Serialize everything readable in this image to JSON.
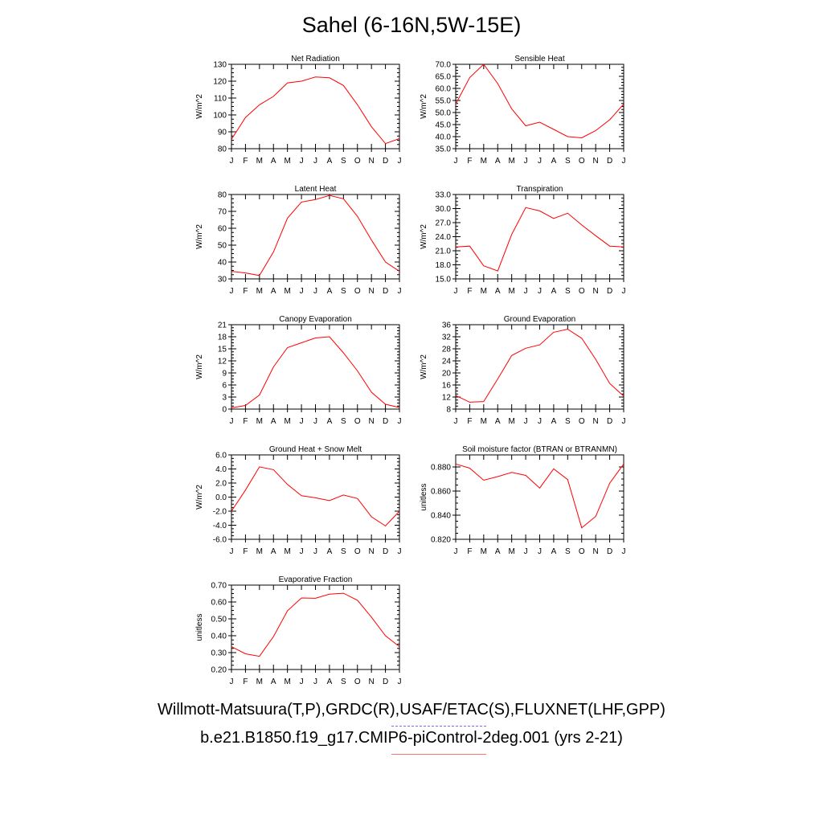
{
  "page": {
    "title": "Sahel (6-16N,5W-15E)",
    "footer_obs": "Willmott-Matsuura(T,P),GRDC(R),USAF/ETAC(S),FLUXNET(LHF,GPP)",
    "footer_model": "b.e21.B1850.f19_g17.CMIP6-piControl-2deg.001 (yrs 2-21)",
    "colors": {
      "model_line": "#ff0000",
      "obs_line": "#6f6fff",
      "axis": "#000000"
    }
  },
  "chart_data": [
    {
      "type": "line",
      "title": "Net Radiation",
      "xlabel": "",
      "ylabel": "W/m^2",
      "x": [
        "J",
        "F",
        "M",
        "A",
        "M",
        "J",
        "J",
        "A",
        "S",
        "O",
        "N",
        "D",
        "J"
      ],
      "ylim": [
        80,
        130
      ],
      "yticks": [
        "80",
        "90",
        "100",
        "110",
        "120",
        "130"
      ],
      "series": [
        {
          "values": [
            85.5,
            98.5,
            106,
            111,
            119,
            120,
            122.5,
            122,
            117.5,
            106,
            93,
            83,
            86
          ]
        }
      ],
      "grid": false
    },
    {
      "type": "line",
      "title": "Sensible Heat",
      "xlabel": "",
      "ylabel": "W/m^2",
      "x": [
        "J",
        "F",
        "M",
        "A",
        "M",
        "J",
        "J",
        "A",
        "S",
        "O",
        "N",
        "D",
        "J"
      ],
      "ylim": [
        35,
        70
      ],
      "yticks": [
        "35.0",
        "40.0",
        "45.0",
        "50.0",
        "55.0",
        "60.0",
        "65.0",
        "70.0"
      ],
      "series": [
        {
          "values": [
            53.5,
            64.5,
            70,
            62,
            51.5,
            44.5,
            46,
            43,
            40,
            39.5,
            42.5,
            47,
            53.5
          ]
        }
      ],
      "grid": false
    },
    {
      "type": "line",
      "title": "Latent Heat",
      "xlabel": "",
      "ylabel": "W/m^2",
      "x": [
        "J",
        "F",
        "M",
        "A",
        "M",
        "J",
        "J",
        "A",
        "S",
        "O",
        "N",
        "D",
        "J"
      ],
      "ylim": [
        30,
        80
      ],
      "yticks": [
        "30",
        "40",
        "50",
        "60",
        "70",
        "80"
      ],
      "series": [
        {
          "values": [
            34.5,
            33.5,
            32,
            46,
            66,
            75.5,
            77,
            79.5,
            77.5,
            67,
            53,
            40,
            34.5
          ]
        }
      ],
      "grid": false
    },
    {
      "type": "line",
      "title": "Transpiration",
      "xlabel": "",
      "ylabel": "W/m^2",
      "x": [
        "J",
        "F",
        "M",
        "A",
        "M",
        "J",
        "J",
        "A",
        "S",
        "O",
        "N",
        "D",
        "J"
      ],
      "ylim": [
        15,
        33
      ],
      "yticks": [
        "15.0",
        "18.0",
        "21.0",
        "24.0",
        "27.0",
        "30.0",
        "33.0"
      ],
      "series": [
        {
          "values": [
            21.8,
            22,
            17.8,
            16.7,
            24.5,
            30.2,
            29.5,
            27.9,
            29,
            26.5,
            24.2,
            22,
            21.8
          ]
        }
      ],
      "grid": false
    },
    {
      "type": "line",
      "title": "Canopy Evaporation",
      "xlabel": "",
      "ylabel": "W/m^2",
      "x": [
        "J",
        "F",
        "M",
        "A",
        "M",
        "J",
        "J",
        "A",
        "S",
        "O",
        "N",
        "D",
        "J"
      ],
      "ylim": [
        0,
        21
      ],
      "yticks": [
        "0",
        "3",
        "6",
        "9",
        "12",
        "15",
        "18",
        "21"
      ],
      "series": [
        {
          "values": [
            0.3,
            0.9,
            3.5,
            10.5,
            15.3,
            16.5,
            17.7,
            18,
            14,
            9.5,
            4.2,
            1.2,
            0.4
          ]
        }
      ],
      "grid": false
    },
    {
      "type": "line",
      "title": "Ground Evaporation",
      "xlabel": "",
      "ylabel": "W/m^2",
      "x": [
        "J",
        "F",
        "M",
        "A",
        "M",
        "J",
        "J",
        "A",
        "S",
        "O",
        "N",
        "D",
        "J"
      ],
      "ylim": [
        8,
        36
      ],
      "yticks": [
        "8",
        "12",
        "16",
        "20",
        "24",
        "28",
        "32",
        "36"
      ],
      "series": [
        {
          "values": [
            12.5,
            10.3,
            10.5,
            18,
            25.8,
            28.2,
            29.3,
            33.5,
            34.5,
            31.5,
            24.5,
            16.5,
            12.3
          ]
        }
      ],
      "grid": false
    },
    {
      "type": "line",
      "title": "Ground Heat + Snow Melt",
      "xlabel": "",
      "ylabel": "W/m^2",
      "x": [
        "J",
        "F",
        "M",
        "A",
        "M",
        "J",
        "J",
        "A",
        "S",
        "O",
        "N",
        "D",
        "J"
      ],
      "ylim": [
        -6,
        6
      ],
      "yticks": [
        "-6.0",
        "-4.0",
        "-2.0",
        "0.0",
        "2.0",
        "4.0",
        "6.0"
      ],
      "series": [
        {
          "values": [
            -2,
            1,
            4.3,
            3.9,
            1.8,
            0.2,
            -0.1,
            -0.5,
            0.3,
            -0.2,
            -2.8,
            -4.1,
            -2
          ]
        }
      ],
      "grid": false
    },
    {
      "type": "line",
      "title": "Soil moisture factor (BTRAN or BTRANMN)",
      "xlabel": "",
      "ylabel": "unitless",
      "x": [
        "J",
        "F",
        "M",
        "A",
        "M",
        "J",
        "J",
        "A",
        "S",
        "O",
        "N",
        "D",
        "J"
      ],
      "ylim": [
        0.82,
        0.89
      ],
      "yticks": [
        "0.820",
        "0.840",
        "0.860",
        "0.880"
      ],
      "series": [
        {
          "values": [
            0.8825,
            0.879,
            0.869,
            0.872,
            0.8755,
            0.873,
            0.8625,
            0.8785,
            0.8695,
            0.8295,
            0.839,
            0.8665,
            0.8825
          ]
        }
      ],
      "grid": false
    },
    {
      "type": "line",
      "title": "Evaporative Fraction",
      "xlabel": "",
      "ylabel": "unitless",
      "x": [
        "J",
        "F",
        "M",
        "A",
        "M",
        "J",
        "J",
        "A",
        "S",
        "O",
        "N",
        "D",
        "J"
      ],
      "ylim": [
        0.2,
        0.7
      ],
      "yticks": [
        "0.20",
        "0.30",
        "0.40",
        "0.50",
        "0.60",
        "0.70"
      ],
      "series": [
        {
          "values": [
            0.335,
            0.293,
            0.278,
            0.395,
            0.548,
            0.624,
            0.622,
            0.646,
            0.652,
            0.61,
            0.51,
            0.4,
            0.335
          ]
        }
      ],
      "grid": false
    }
  ]
}
